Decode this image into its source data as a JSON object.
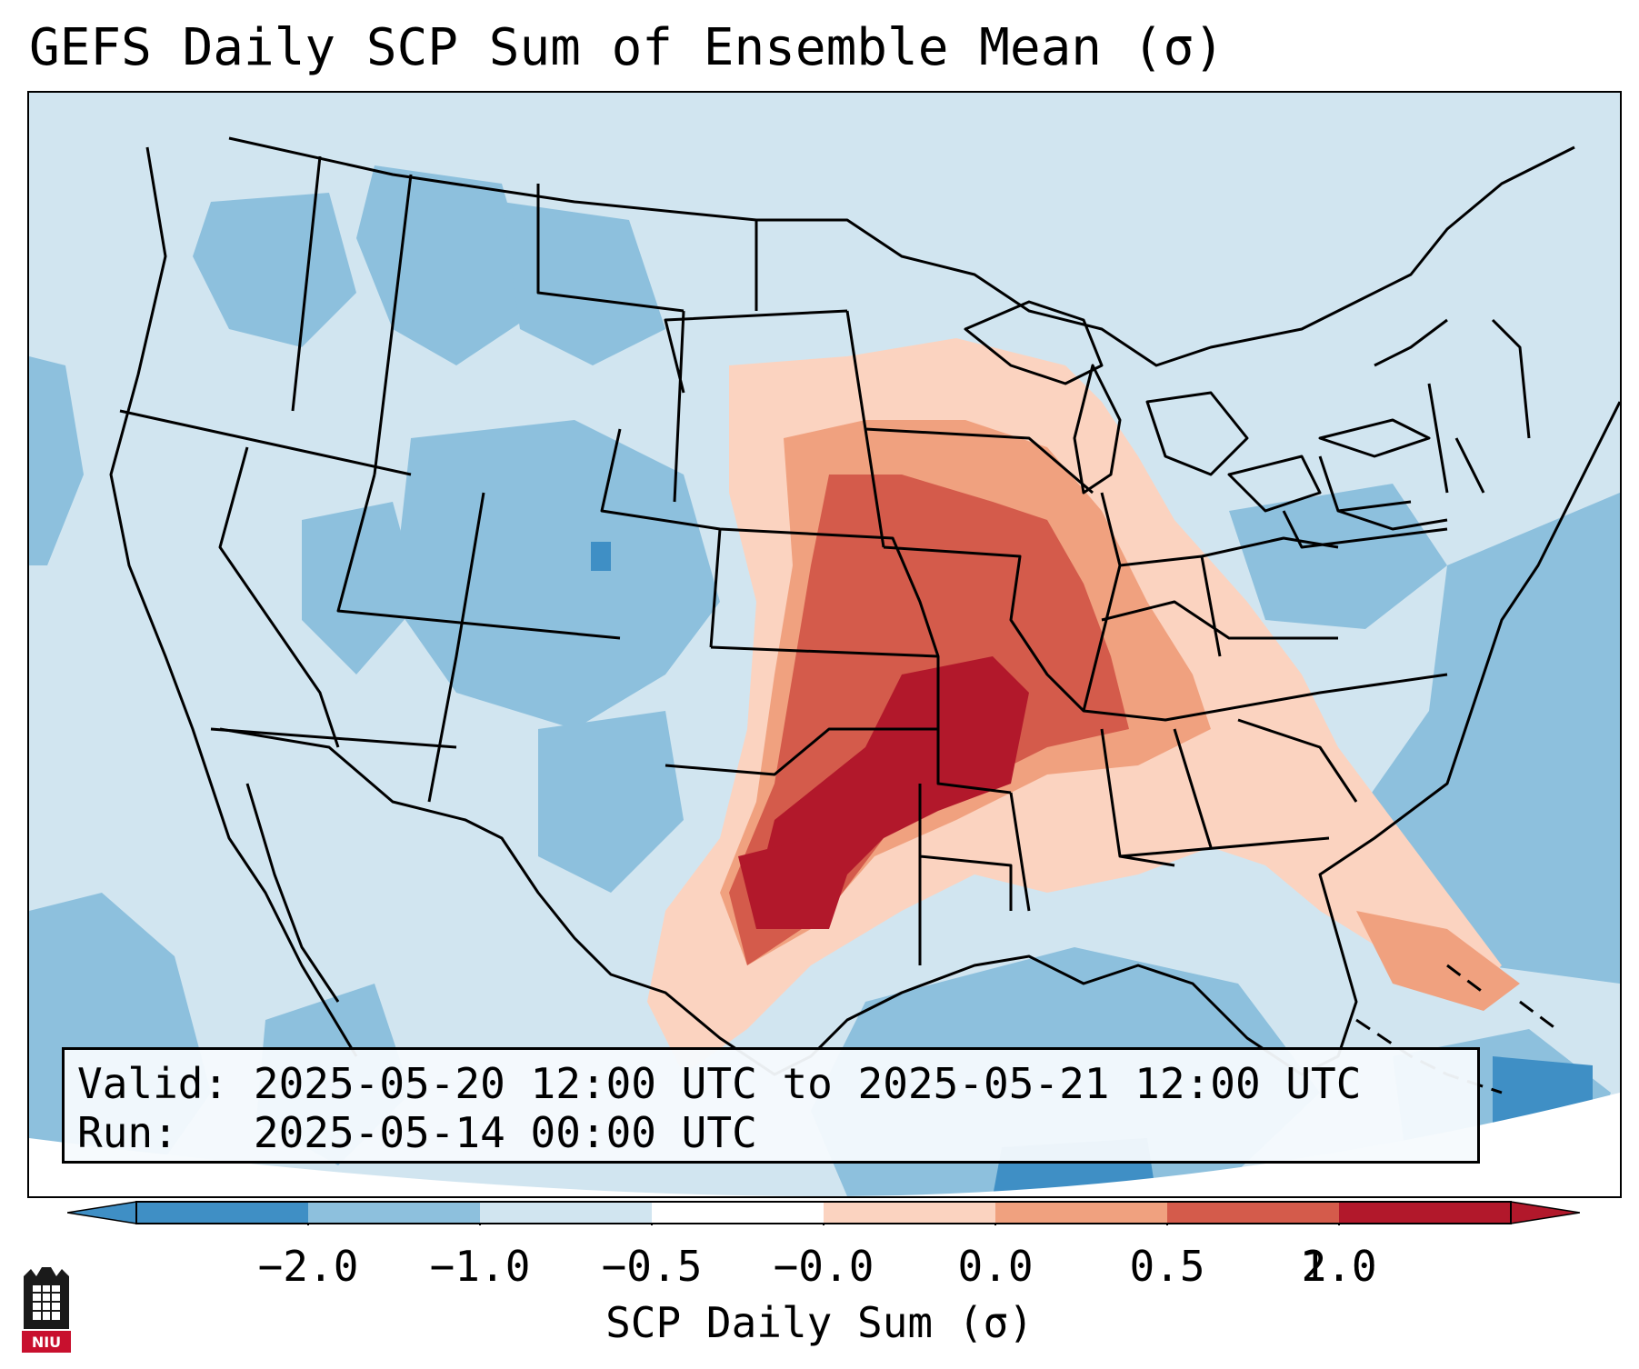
{
  "title": "GEFS Daily SCP Sum of Ensemble Mean (σ)",
  "info_box": {
    "valid_label": "Valid:",
    "valid_value": "2025-05-20 12:00 UTC to 2025-05-21 12:00 UTC",
    "run_label": "Run:",
    "run_value": "2025-05-14 00:00 UTC"
  },
  "colorbar": {
    "label": "SCP Daily Sum (σ)",
    "ticks": [
      "−2.0",
      "−1.0",
      "−0.5",
      "−0.0",
      "0.0",
      "0.5",
      "1.0",
      "2.0"
    ],
    "colors": [
      "#3f8fc5",
      "#8dc0dd",
      "#d1e5f0",
      "#ffffff",
      "#fbd3c0",
      "#f0a17f",
      "#d45b4b",
      "#b2182b"
    ],
    "extend_colors": {
      "low": "#3f8fc5",
      "high": "#b2182b"
    }
  },
  "map": {
    "region": "CONUS",
    "background_color": "#d1e5f0",
    "hotspot_states": [
      "Oklahoma",
      "Arkansas",
      "Missouri",
      "Iowa",
      "Illinois",
      "Texas"
    ]
  },
  "logo": {
    "text": "NIU",
    "colors": {
      "primary": "#c8102e",
      "secondary": "#000000"
    }
  }
}
